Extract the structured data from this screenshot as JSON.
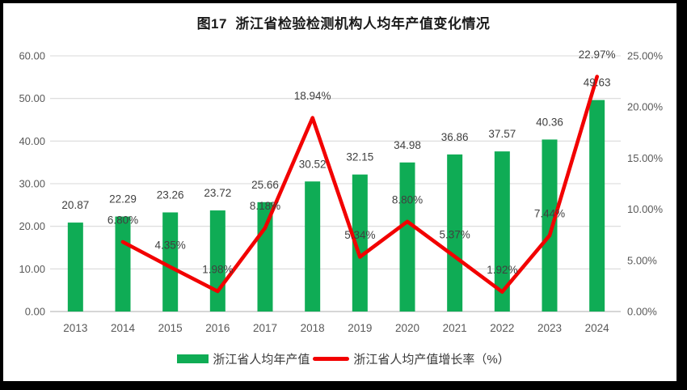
{
  "title": "图17  浙江省检验检测机构人均年产值变化情况",
  "legend": {
    "bar_label": "浙江省人均年产值",
    "line_label": "浙江省人均产值增长率（%）"
  },
  "colors": {
    "bar": "#0fac55",
    "line": "#f20000",
    "grid": "#dadada",
    "axis_line": "#c8c8c8",
    "tick_text": "#595959",
    "data_label": "#404040",
    "title_text": "#1a1a1a",
    "background": "#ffffff",
    "border": "#000000"
  },
  "chart_data": {
    "type": "bar",
    "combo": "bar+line",
    "title": "图17  浙江省检验检测机构人均年产值变化情况",
    "categories": [
      "2013",
      "2014",
      "2015",
      "2016",
      "2017",
      "2018",
      "2019",
      "2020",
      "2021",
      "2022",
      "2023",
      "2024"
    ],
    "series": [
      {
        "name": "浙江省人均年产值",
        "type": "bar",
        "axis": "left",
        "values": [
          20.87,
          22.29,
          23.26,
          23.72,
          25.66,
          30.52,
          32.15,
          34.98,
          36.86,
          37.57,
          40.36,
          49.63
        ],
        "labels": [
          "20.87",
          "22.29",
          "23.26",
          "23.72",
          "25.66",
          "30.52",
          "32.15",
          "34.98",
          "36.86",
          "37.57",
          "40.36",
          "49.63"
        ]
      },
      {
        "name": "浙江省人均产值增长率（%）",
        "type": "line",
        "axis": "right",
        "values": [
          null,
          6.8,
          4.35,
          1.98,
          8.18,
          18.94,
          5.34,
          8.8,
          5.37,
          1.92,
          7.44,
          22.97
        ],
        "labels": [
          null,
          "6.80%",
          "4.35%",
          "1.98%",
          "8.18%",
          "18.94%",
          "5.34%",
          "8.80%",
          "5.37%",
          "1.92%",
          "7.44%",
          "22.97%"
        ]
      }
    ],
    "left_axis": {
      "min": 0,
      "max": 60,
      "step": 10,
      "tick_labels": [
        "0.00",
        "10.00",
        "20.00",
        "30.00",
        "40.00",
        "50.00",
        "60.00"
      ]
    },
    "right_axis": {
      "min": 0,
      "max": 25,
      "step": 5,
      "tick_labels": [
        "0.00%",
        "5.00%",
        "10.00%",
        "15.00%",
        "20.00%",
        "25.00%"
      ]
    },
    "grid": "horizontal",
    "legend_position": "bottom"
  }
}
